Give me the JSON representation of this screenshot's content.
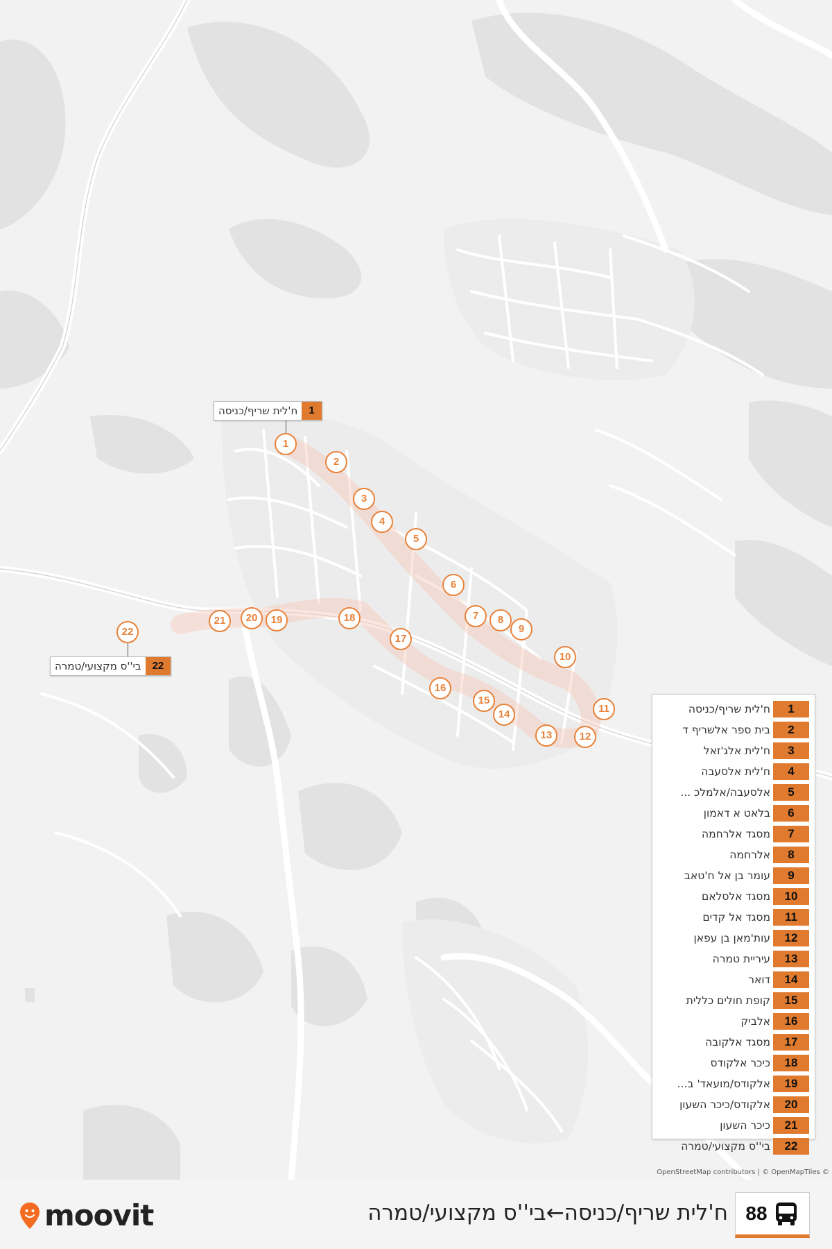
{
  "route": {
    "number": "88",
    "title": "ח'לית שריף/כניסה←בי''ס מקצועי/טמרה"
  },
  "brand": {
    "name": "moovit",
    "accent_color": "#e07a2e",
    "logo_color": "#f26b21"
  },
  "map": {
    "attribution": "OpenStreetMap contributors | © OpenMapTiles ©",
    "background_color": "#f2f2f2",
    "route_color": "#f7c9b8",
    "start_callout": {
      "number": "1",
      "name": "ח'לית שריף/כניסה"
    },
    "end_callout": {
      "number": "22",
      "name": "בי''ס מקצועי/טמרה"
    }
  },
  "stops": [
    {
      "number": "1",
      "name": "ח'לית שריף/כניסה"
    },
    {
      "number": "2",
      "name": "בית ספר אלשריף ד"
    },
    {
      "number": "3",
      "name": "ח'לית אלג'זאל"
    },
    {
      "number": "4",
      "name": "ח'לית אלסעבה"
    },
    {
      "number": "5",
      "name": "אלסעבה/אלמלכ ..."
    },
    {
      "number": "6",
      "name": "בלאט א דאמון"
    },
    {
      "number": "7",
      "name": "מסגד אלרחמה"
    },
    {
      "number": "8",
      "name": "אלרחמה"
    },
    {
      "number": "9",
      "name": "עומר בן אל ח'טאב"
    },
    {
      "number": "10",
      "name": "מסגד אלסלאם"
    },
    {
      "number": "11",
      "name": "מסגד אל קדים"
    },
    {
      "number": "12",
      "name": "עות'מאן בן עפאן"
    },
    {
      "number": "13",
      "name": "עיריית טמרה"
    },
    {
      "number": "14",
      "name": "דואר"
    },
    {
      "number": "15",
      "name": "קופת חולים כללית"
    },
    {
      "number": "16",
      "name": "אלביק"
    },
    {
      "number": "17",
      "name": "מסגד אלקובה"
    },
    {
      "number": "18",
      "name": "כיכר אלקודס"
    },
    {
      "number": "19",
      "name": "אלקודס/מועאד' ב..."
    },
    {
      "number": "20",
      "name": "אלקודס/כיכר השעון"
    },
    {
      "number": "21",
      "name": "כיכר השעון"
    },
    {
      "number": "22",
      "name": "בי''ס מקצועי/טמרה"
    }
  ]
}
